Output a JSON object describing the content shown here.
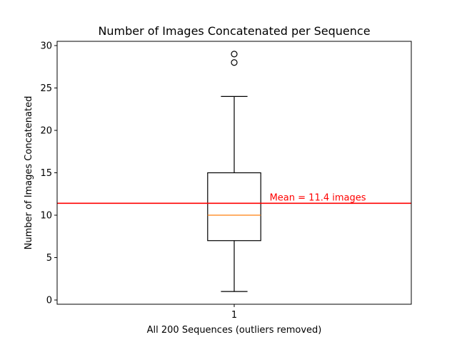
{
  "chart_data": {
    "type": "box",
    "title": "Number of Images Concatenated per Sequence",
    "xlabel": "All 200 Sequences (outliers removed)",
    "ylabel": "Number of Images Concatenated",
    "ylim": [
      -0.5,
      30.5
    ],
    "yticks": [
      0,
      5,
      10,
      15,
      20,
      25,
      30
    ],
    "xticks": [
      1
    ],
    "xlim": [
      0.5,
      1.5
    ],
    "grid": false,
    "boxes": [
      {
        "position": 1,
        "whisker_low": 1,
        "q1": 7,
        "median": 10,
        "q3": 15,
        "whisker_high": 24,
        "outliers": [
          28,
          29
        ]
      }
    ],
    "mean_line": {
      "value": 11.4,
      "label": "Mean = 11.4 images",
      "color": "#ff0000"
    },
    "colors": {
      "box": "#000000",
      "median": "#ff7f0e",
      "outlier": "#000000"
    }
  }
}
